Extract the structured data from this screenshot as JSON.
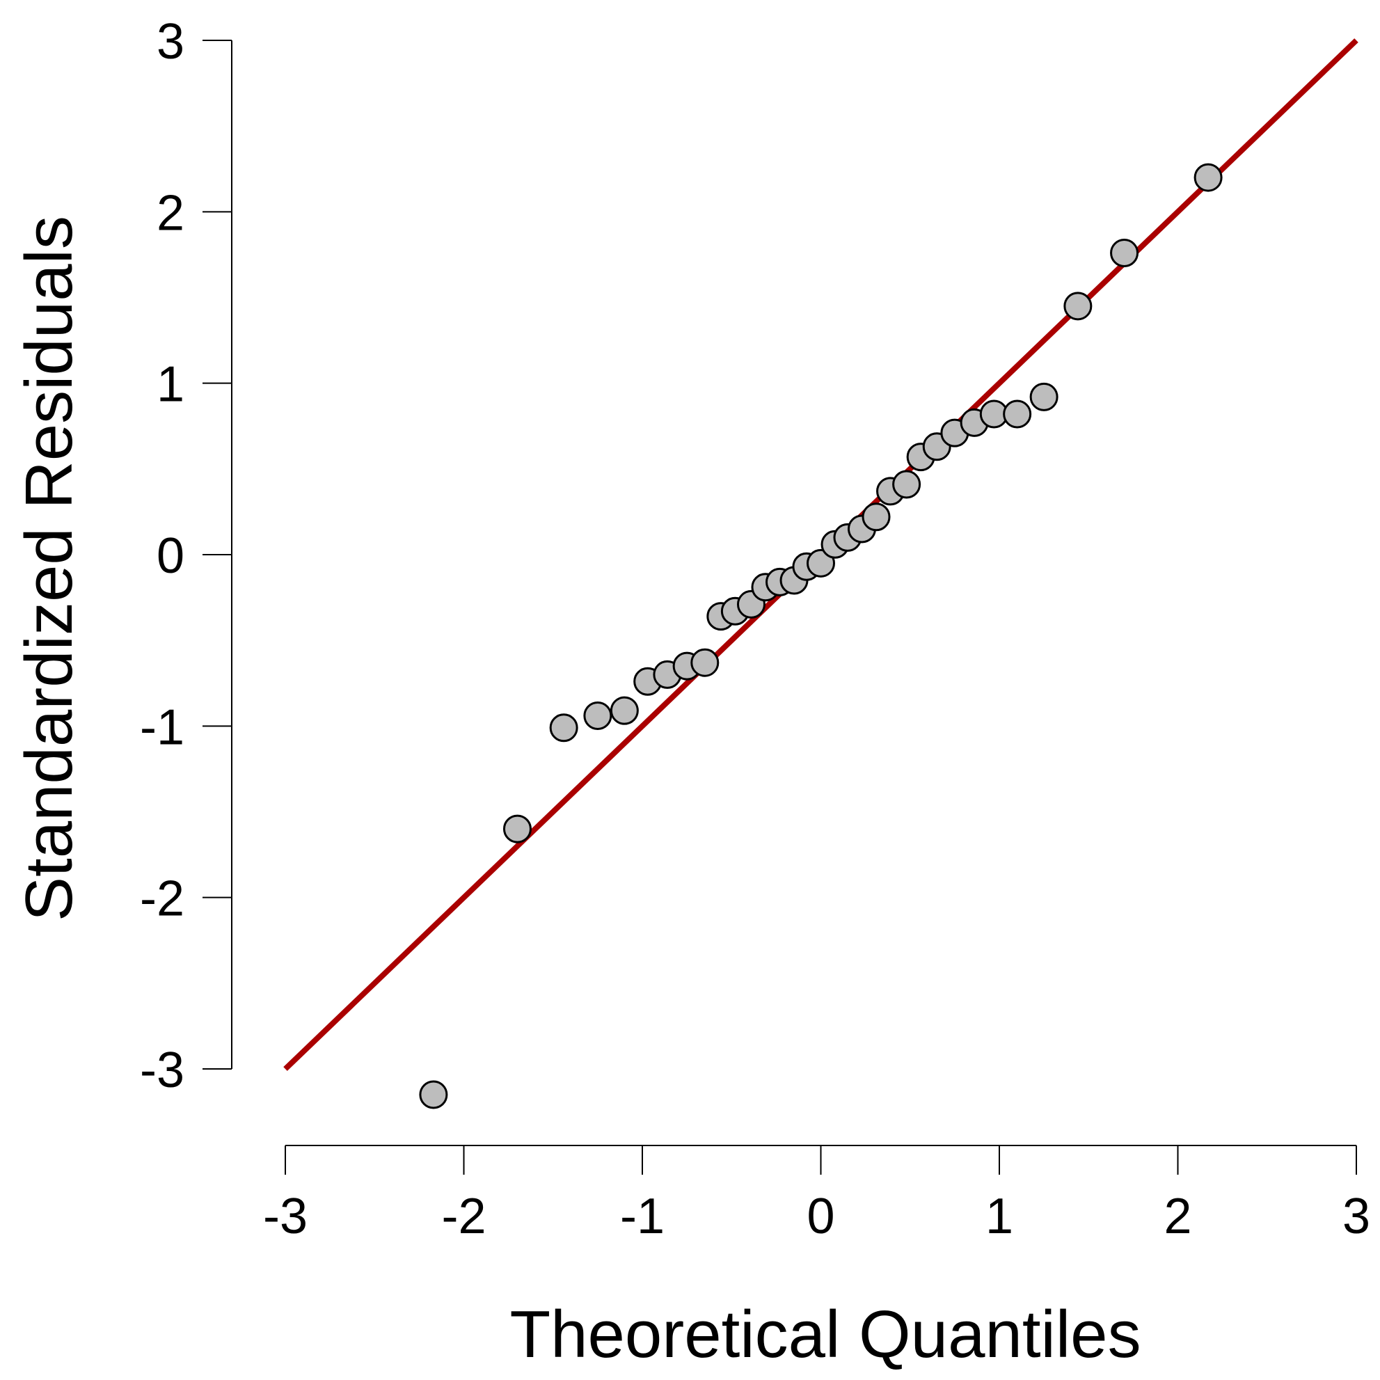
{
  "chart_data": {
    "type": "scatter",
    "title": "",
    "xlabel": "Theoretical Quantiles",
    "ylabel": "Standardized Residuals",
    "xlim": [
      -3,
      3
    ],
    "ylim": [
      -3,
      3
    ],
    "xticks": [
      "-3",
      "-2",
      "-1",
      "0",
      "1",
      "2",
      "3"
    ],
    "yticks": [
      "-3",
      "-2",
      "-1",
      "0",
      "1",
      "2",
      "3"
    ],
    "grid": false,
    "reference_line": {
      "from": [
        -3,
        -3
      ],
      "to": [
        3,
        3
      ],
      "color": "#aa0000"
    },
    "point_fill": "#bdbdbd",
    "point_stroke": "#000000",
    "points": [
      {
        "x": -2.17,
        "y": -3.15
      },
      {
        "x": -1.7,
        "y": -1.6
      },
      {
        "x": -1.44,
        "y": -1.01
      },
      {
        "x": -1.25,
        "y": -0.94
      },
      {
        "x": -1.1,
        "y": -0.91
      },
      {
        "x": -0.97,
        "y": -0.74
      },
      {
        "x": -0.86,
        "y": -0.7
      },
      {
        "x": -0.75,
        "y": -0.65
      },
      {
        "x": -0.65,
        "y": -0.63
      },
      {
        "x": -0.56,
        "y": -0.36
      },
      {
        "x": -0.48,
        "y": -0.33
      },
      {
        "x": -0.39,
        "y": -0.29
      },
      {
        "x": -0.31,
        "y": -0.19
      },
      {
        "x": -0.23,
        "y": -0.16
      },
      {
        "x": -0.15,
        "y": -0.15
      },
      {
        "x": -0.08,
        "y": -0.07
      },
      {
        "x": 0.0,
        "y": -0.05
      },
      {
        "x": 0.08,
        "y": 0.06
      },
      {
        "x": 0.15,
        "y": 0.1
      },
      {
        "x": 0.23,
        "y": 0.15
      },
      {
        "x": 0.31,
        "y": 0.22
      },
      {
        "x": 0.39,
        "y": 0.37
      },
      {
        "x": 0.48,
        "y": 0.41
      },
      {
        "x": 0.56,
        "y": 0.57
      },
      {
        "x": 0.65,
        "y": 0.63
      },
      {
        "x": 0.75,
        "y": 0.71
      },
      {
        "x": 0.86,
        "y": 0.77
      },
      {
        "x": 0.97,
        "y": 0.82
      },
      {
        "x": 1.1,
        "y": 0.82
      },
      {
        "x": 1.25,
        "y": 0.92
      },
      {
        "x": 1.44,
        "y": 1.45
      },
      {
        "x": 1.7,
        "y": 1.76
      },
      {
        "x": 2.17,
        "y": 2.2
      }
    ]
  }
}
